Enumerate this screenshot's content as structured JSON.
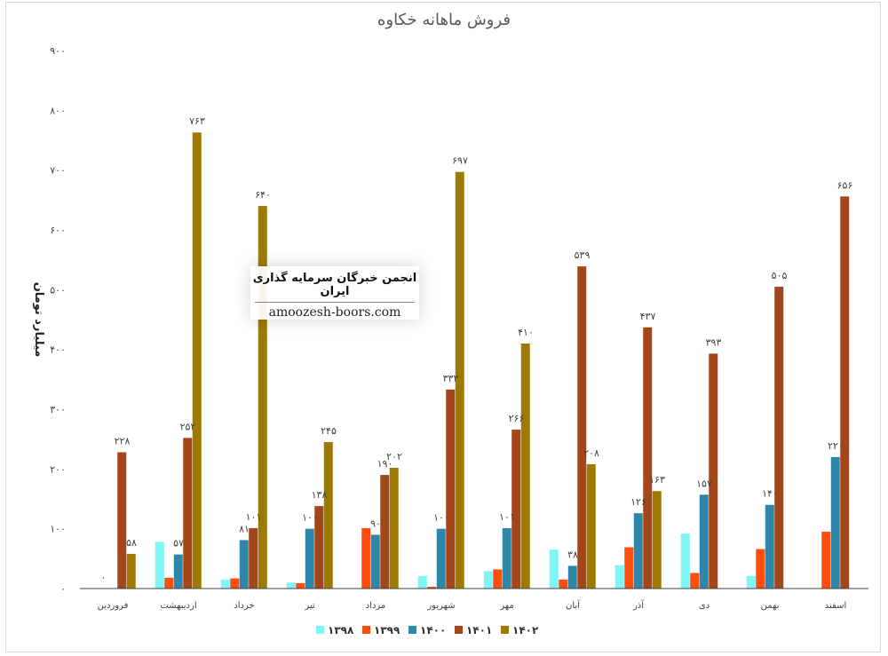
{
  "chart_data": {
    "type": "bar",
    "title": "فروش ماهانه خکاوه",
    "ylabel": "میلیارد تومان",
    "xlabel": "",
    "ylim": [
      0,
      900
    ],
    "yticks": [
      "0",
      "100",
      "200",
      "300",
      "400",
      "500",
      "600",
      "700",
      "800",
      "900"
    ],
    "ytick_labels": [
      "۰",
      "۱۰۰",
      "۲۰۰",
      "۳۰۰",
      "۴۰۰",
      "۵۰۰",
      "۶۰۰",
      "۷۰۰",
      "۸۰۰",
      "۹۰۰"
    ],
    "categories": [
      "فروردین",
      "اردیبهشت",
      "خرداد",
      "تیر",
      "مرداد",
      "شهریور",
      "مهر",
      "آبان",
      "آذر",
      "دی",
      "بهمن",
      "اسفند"
    ],
    "legend_position": "bottom",
    "grid": false,
    "series": [
      {
        "name": "۱۳۹۸",
        "color": "#7ff5f5",
        "values": [
          0,
          78,
          15,
          10,
          null,
          21,
          29,
          65,
          39,
          92,
          21,
          null
        ]
      },
      {
        "name": "۱۳۹۹",
        "color": "#ff4d0d",
        "values": [
          0,
          18,
          17,
          9,
          101,
          3,
          32,
          15,
          69,
          26,
          66,
          95
        ]
      },
      {
        "name": "۱۴۰۰",
        "color": "#2e86a8",
        "values": [
          0,
          57,
          81,
          100,
          90,
          100,
          101,
          38,
          126,
          157,
          140,
          220
        ]
      },
      {
        "name": "۱۴۰۱",
        "color": "#a3461a",
        "values": [
          228,
          252,
          101,
          138,
          190,
          333,
          266,
          539,
          437,
          393,
          505,
          656
        ]
      },
      {
        "name": "۱۴۰۲",
        "color": "#9e7a05",
        "values": [
          58,
          763,
          640,
          245,
          202,
          697,
          410,
          208,
          163,
          null,
          null,
          null
        ]
      }
    ],
    "data_labels": [
      {
        "category": "فروردین",
        "series": "۱۳۹۹",
        "text": "۰"
      },
      {
        "category": "فروردین",
        "series": "۱۴۰۱",
        "text": "۲۲۸"
      },
      {
        "category": "فروردین",
        "series": "۱۴۰۲",
        "text": "۵۸"
      },
      {
        "category": "اردیبهشت",
        "series": "۱۴۰۰",
        "text": "۵۷"
      },
      {
        "category": "اردیبهشت",
        "series": "۱۴۰۱",
        "text": "۲۵۲"
      },
      {
        "category": "اردیبهشت",
        "series": "۱۴۰۲",
        "text": "۷۶۳"
      },
      {
        "category": "خرداد",
        "series": "۱۴۰۰",
        "text": "۸۱"
      },
      {
        "category": "خرداد",
        "series": "۱۴۰۱",
        "text": "۱۰۱"
      },
      {
        "category": "خرداد",
        "series": "۱۴۰۲",
        "text": "۶۴۰"
      },
      {
        "category": "تیر",
        "series": "۱۴۰۰",
        "text": "۱۰۰"
      },
      {
        "category": "تیر",
        "series": "۱۴۰۱",
        "text": "۱۳۸"
      },
      {
        "category": "تیر",
        "series": "۱۴۰۲",
        "text": "۲۴۵"
      },
      {
        "category": "مرداد",
        "series": "۱۴۰۰",
        "text": "۹۰"
      },
      {
        "category": "مرداد",
        "series": "۱۴۰۱",
        "text": "۱۹۰"
      },
      {
        "category": "مرداد",
        "series": "۱۴۰۲",
        "text": "۲۰۲"
      },
      {
        "category": "شهریور",
        "series": "۱۴۰۰",
        "text": "۱۰۰"
      },
      {
        "category": "شهریور",
        "series": "۱۴۰۱",
        "text": "۳۳۳"
      },
      {
        "category": "شهریور",
        "series": "۱۴۰۲",
        "text": "۶۹۷"
      },
      {
        "category": "مهر",
        "series": "۱۴۰۰",
        "text": "۱۰۱"
      },
      {
        "category": "مهر",
        "series": "۱۴۰۱",
        "text": "۲۶۶"
      },
      {
        "category": "مهر",
        "series": "۱۴۰۲",
        "text": "۴۱۰"
      },
      {
        "category": "آبان",
        "series": "۱۴۰۰",
        "text": "۳۸"
      },
      {
        "category": "آبان",
        "series": "۱۴۰۱",
        "text": "۵۳۹"
      },
      {
        "category": "آبان",
        "series": "۱۴۰۲",
        "text": "۲۰۸"
      },
      {
        "category": "آذر",
        "series": "۱۴۰۰",
        "text": "۱۲۶"
      },
      {
        "category": "آذر",
        "series": "۱۴۰۱",
        "text": "۴۳۷"
      },
      {
        "category": "آذر",
        "series": "۱۴۰۲",
        "text": "۱۶۳"
      },
      {
        "category": "دی",
        "series": "۱۴۰۰",
        "text": "۱۵۷"
      },
      {
        "category": "دی",
        "series": "۱۴۰۱",
        "text": "۳۹۳"
      },
      {
        "category": "بهمن",
        "series": "۱۴۰۰",
        "text": "۱۴۰"
      },
      {
        "category": "بهمن",
        "series": "۱۴۰۱",
        "text": "۵۰۵"
      },
      {
        "category": "اسفند",
        "series": "۱۴۰۰",
        "text": "۲۲۰"
      },
      {
        "category": "اسفند",
        "series": "۱۴۰۱",
        "text": "۶۵۶"
      }
    ]
  },
  "watermark": {
    "title": "انجمن خبرگان سرمایه گذاری ایران",
    "url": "amoozesh-boors.com"
  }
}
